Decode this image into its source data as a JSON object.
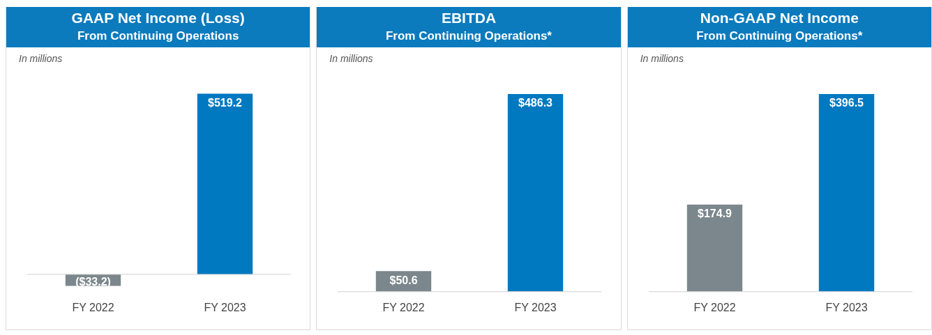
{
  "chart_data": [
    {
      "type": "bar",
      "title": "GAAP Net Income (Loss)",
      "subtitle": "From Continuing Operations",
      "annotations": [
        "In millions"
      ],
      "categories": [
        "FY 2022",
        "FY 2023"
      ],
      "values": [
        -33.2,
        519.2
      ],
      "colors": [
        "#7b878c",
        "#0079c1"
      ],
      "value_labels": [
        "($33.2)",
        "$519.2"
      ],
      "legend": false,
      "grid": false
    },
    {
      "type": "bar",
      "title": "EBITDA",
      "subtitle": "From Continuing Operations*",
      "annotations": [
        "In millions"
      ],
      "categories": [
        "FY 2022",
        "FY 2023"
      ],
      "values": [
        50.6,
        486.3
      ],
      "colors": [
        "#7b878c",
        "#0079c1"
      ],
      "value_labels": [
        "$50.6",
        "$486.3"
      ],
      "legend": false,
      "grid": false
    },
    {
      "type": "bar",
      "title": "Non-GAAP Net Income",
      "subtitle": "From Continuing Operations*",
      "annotations": [
        "In millions"
      ],
      "categories": [
        "FY 2022",
        "FY 2023"
      ],
      "values": [
        174.9,
        396.5
      ],
      "colors": [
        "#7b878c",
        "#0079c1"
      ],
      "value_labels": [
        "$174.9",
        "$396.5"
      ],
      "legend": false,
      "grid": false
    }
  ]
}
